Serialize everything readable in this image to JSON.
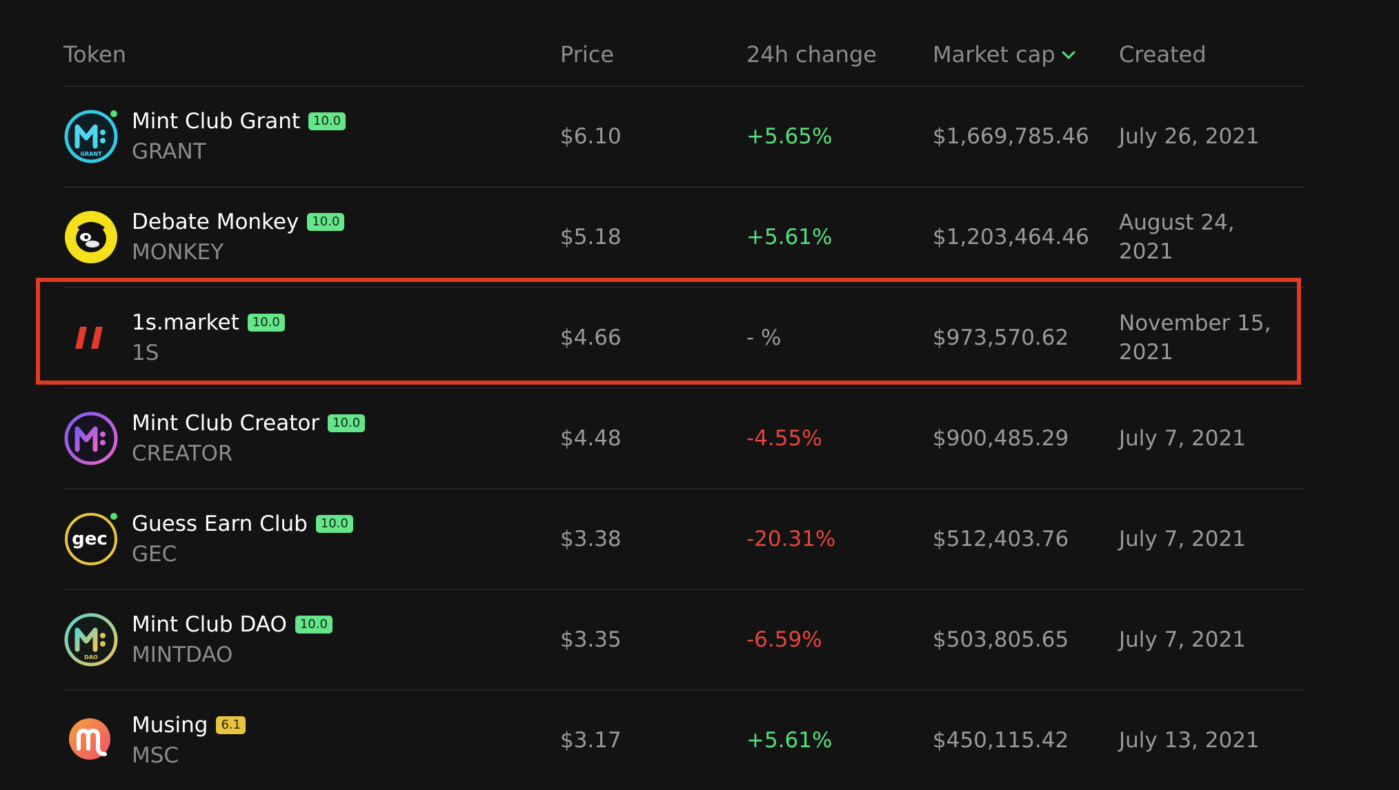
{
  "header": {
    "token": "Token",
    "price": "Price",
    "change": "24h change",
    "market_cap": "Market cap",
    "created": "Created"
  },
  "colors": {
    "positive": "#55e07a",
    "negative": "#e6453d",
    "highlight": "#e03a24",
    "badge_high": "#67e58a",
    "badge_mid": "#e9c441"
  },
  "rows": [
    {
      "name": "Mint Club Grant",
      "badge": "10.0",
      "symbol": "GRANT",
      "price": "$6.10",
      "change": "+5.65%",
      "market_cap": "$1,669,785.46",
      "created": "July 26, 2021",
      "icon": "mint-club-grant-logo-icon"
    },
    {
      "name": "Debate Monkey",
      "badge": "10.0",
      "symbol": "MONKEY",
      "price": "$5.18",
      "change": "+5.61%",
      "market_cap": "$1,203,464.46",
      "created": "August 24, 2021",
      "icon": "debate-monkey-logo-icon"
    },
    {
      "name": "1s.market",
      "badge": "10.0",
      "symbol": "1S",
      "price": "$4.66",
      "change": "- %",
      "market_cap": "$973,570.62",
      "created": "November 15, 2021",
      "icon": "1s-market-logo-icon"
    },
    {
      "name": "Mint Club Creator",
      "badge": "10.0",
      "symbol": "CREATOR",
      "price": "$4.48",
      "change": "-4.55%",
      "market_cap": "$900,485.29",
      "created": "July 7, 2021",
      "icon": "mint-club-creator-logo-icon"
    },
    {
      "name": "Guess Earn Club",
      "badge": "10.0",
      "symbol": "GEC",
      "price": "$3.38",
      "change": "-20.31%",
      "market_cap": "$512,403.76",
      "created": "July 7, 2021",
      "icon": "guess-earn-club-logo-icon"
    },
    {
      "name": "Mint Club DAO",
      "badge": "10.0",
      "symbol": "MINTDAO",
      "price": "$3.35",
      "change": "-6.59%",
      "market_cap": "$503,805.65",
      "created": "July 7, 2021",
      "icon": "mint-club-dao-logo-icon"
    },
    {
      "name": "Musing",
      "badge": "6.1",
      "symbol": "MSC",
      "price": "$3.17",
      "change": "+5.61%",
      "market_cap": "$450,115.42",
      "created": "July 13, 2021",
      "icon": "musing-logo-icon"
    }
  ],
  "logo_text": {
    "grant": "GRANT",
    "dao": "DAO",
    "gec": "gec"
  }
}
